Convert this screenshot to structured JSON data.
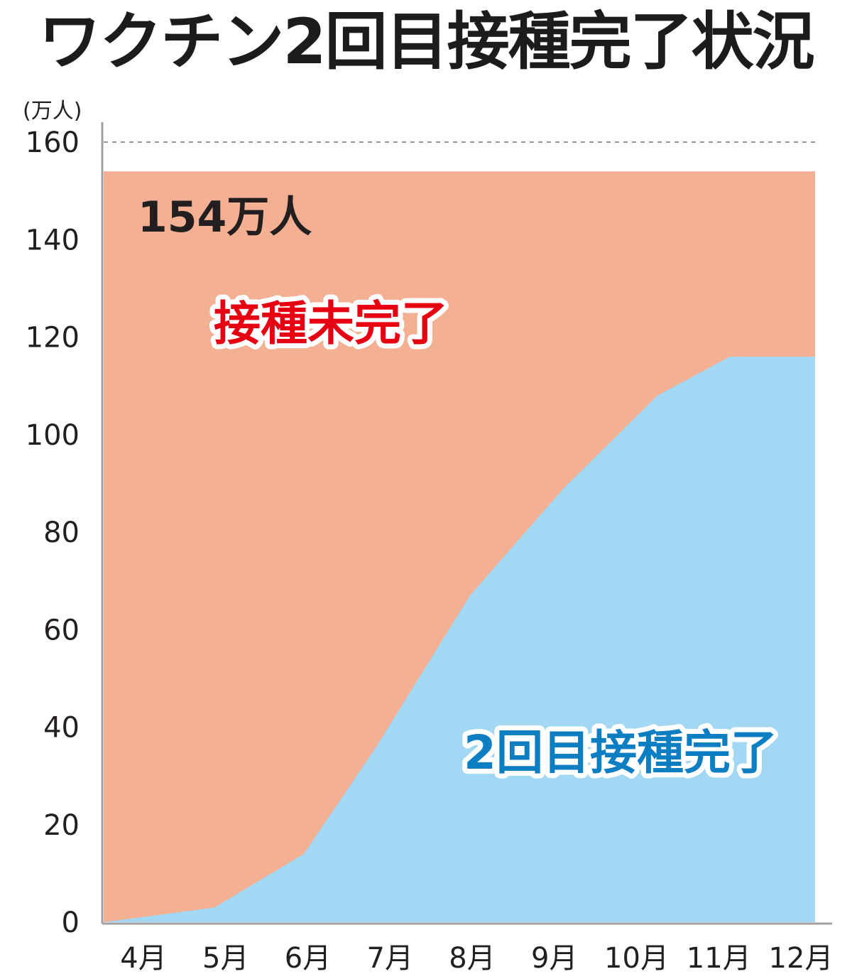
{
  "chart_data": {
    "type": "area",
    "title": "ワクチン2回目接種完了状況",
    "ylabel": "(万人)",
    "xlabel": "",
    "ylim": [
      0,
      160
    ],
    "yticks": [
      "0",
      "20",
      "40",
      "60",
      "80",
      "100",
      "120",
      "140",
      "160"
    ],
    "categories": [
      "4月",
      "5月",
      "6月",
      "7月",
      "8月",
      "9月",
      "10月",
      "11月",
      "12月"
    ],
    "total_label": "154万人",
    "series": [
      {
        "name": "接種未完了",
        "color": "#f4b092",
        "label_color": "#e60012",
        "values": [
          154,
          154,
          154,
          154,
          154,
          154,
          154,
          154,
          154
        ]
      },
      {
        "name": "2回目接種完了",
        "color": "#a3d8f4",
        "label_color": "#0e7ec2",
        "x": [
          4.0,
          5.3,
          6.35,
          7.2,
          8.3,
          9.4,
          10.5,
          11.35,
          12.35
        ],
        "values": [
          0,
          3,
          14,
          36,
          67,
          89,
          108,
          116,
          116
        ]
      }
    ],
    "grid": false,
    "reference_line": 160,
    "legend": "none"
  }
}
